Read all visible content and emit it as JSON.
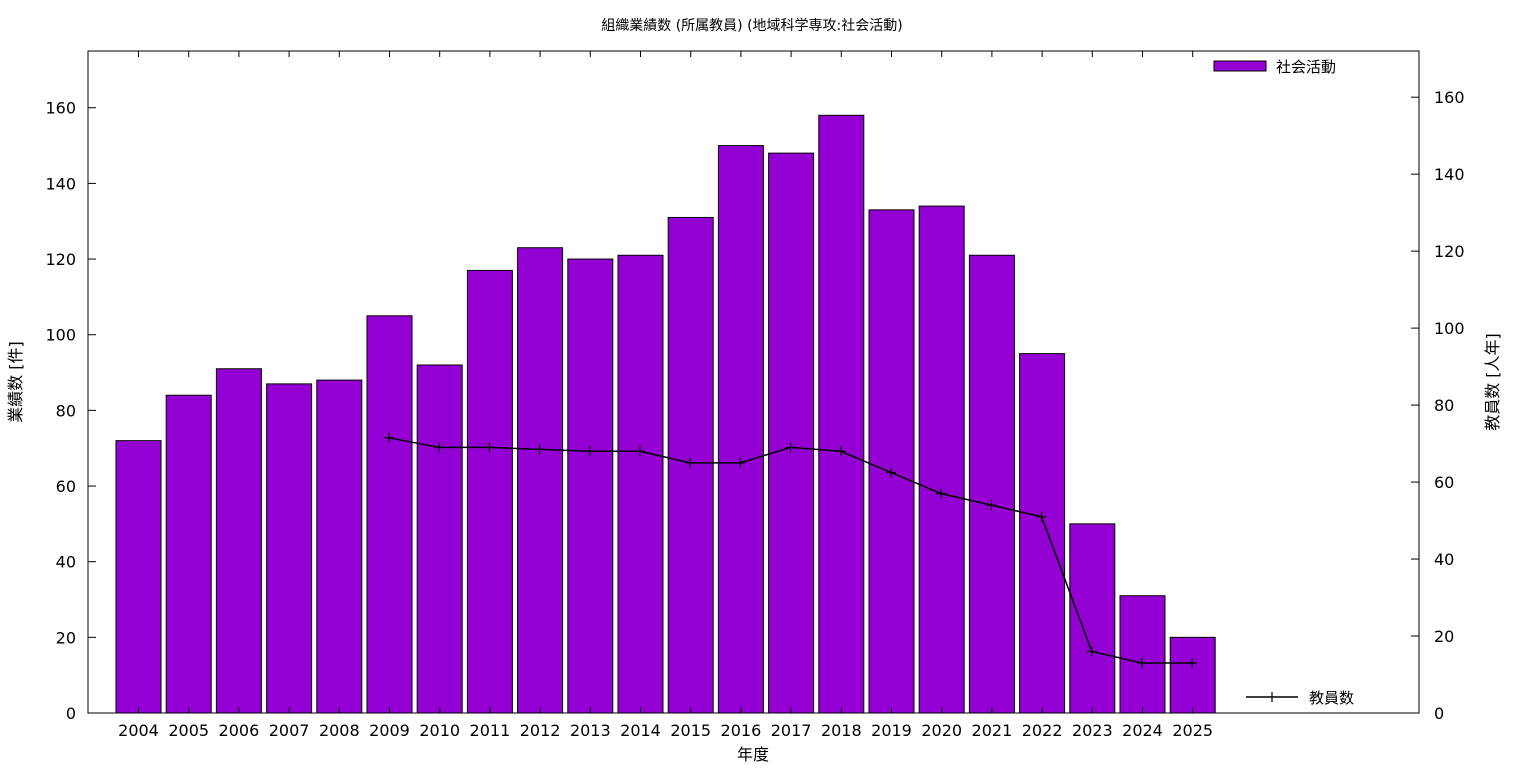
{
  "chart_data": {
    "type": "bar",
    "title": "組織業績数 (所属教員) (地域科学専攻:社会活動)",
    "xlabel": "年度",
    "ylabel": "業績数 [件]",
    "y2label": "教員数 [人年]",
    "ylim": [
      0,
      175
    ],
    "y2lim": [
      0,
      172
    ],
    "yticks": [
      0,
      20,
      40,
      60,
      80,
      100,
      120,
      140,
      160
    ],
    "y2ticks": [
      0,
      20,
      40,
      60,
      80,
      100,
      120,
      140,
      160
    ],
    "grid": false,
    "colors": {
      "bar": "#9400d3",
      "line": "#000000"
    },
    "categories": [
      "2004",
      "2005",
      "2006",
      "2007",
      "2008",
      "2009",
      "2010",
      "2011",
      "2012",
      "2013",
      "2014",
      "2015",
      "2016",
      "2017",
      "2018",
      "2019",
      "2020",
      "2021",
      "2022",
      "2023",
      "2024",
      "2025"
    ],
    "series": [
      {
        "name": "社会活動",
        "type": "bar",
        "axis": "left",
        "values": [
          72,
          84,
          91,
          87,
          88,
          105,
          92,
          117,
          123,
          120,
          121,
          131,
          150,
          148,
          158,
          133,
          134,
          121,
          95,
          50,
          31,
          20
        ]
      },
      {
        "name": "教員数",
        "type": "line",
        "axis": "right",
        "values": [
          null,
          null,
          null,
          null,
          null,
          71.5,
          69,
          69,
          68.5,
          68,
          68,
          65,
          65,
          69,
          68,
          62.5,
          57,
          54,
          51,
          16,
          13,
          13
        ]
      }
    ],
    "legend": {
      "bar_position": "top-right",
      "line_position": "bottom-right"
    }
  }
}
